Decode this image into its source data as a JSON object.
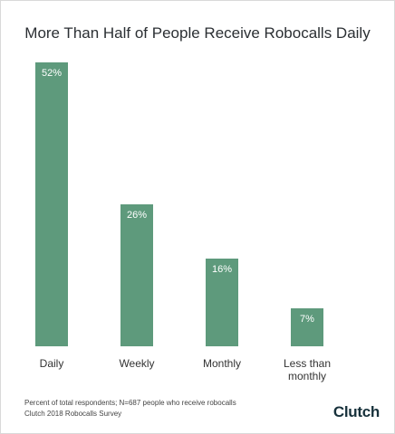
{
  "chart_data": {
    "type": "bar",
    "title": "More Than Half of People Receive Robocalls Daily",
    "categories": [
      "Daily",
      "Weekly",
      "Monthly",
      "Less than monthly"
    ],
    "values": [
      52,
      26,
      16,
      7
    ],
    "value_labels": [
      "52%",
      "26%",
      "16%",
      "7%"
    ],
    "color": "#5e9a7c",
    "notes": [
      "Percent of total respondents; N=687 people who receive robocalls",
      "Clutch 2018 Robocalls Survey"
    ],
    "brand": "Clutch"
  }
}
